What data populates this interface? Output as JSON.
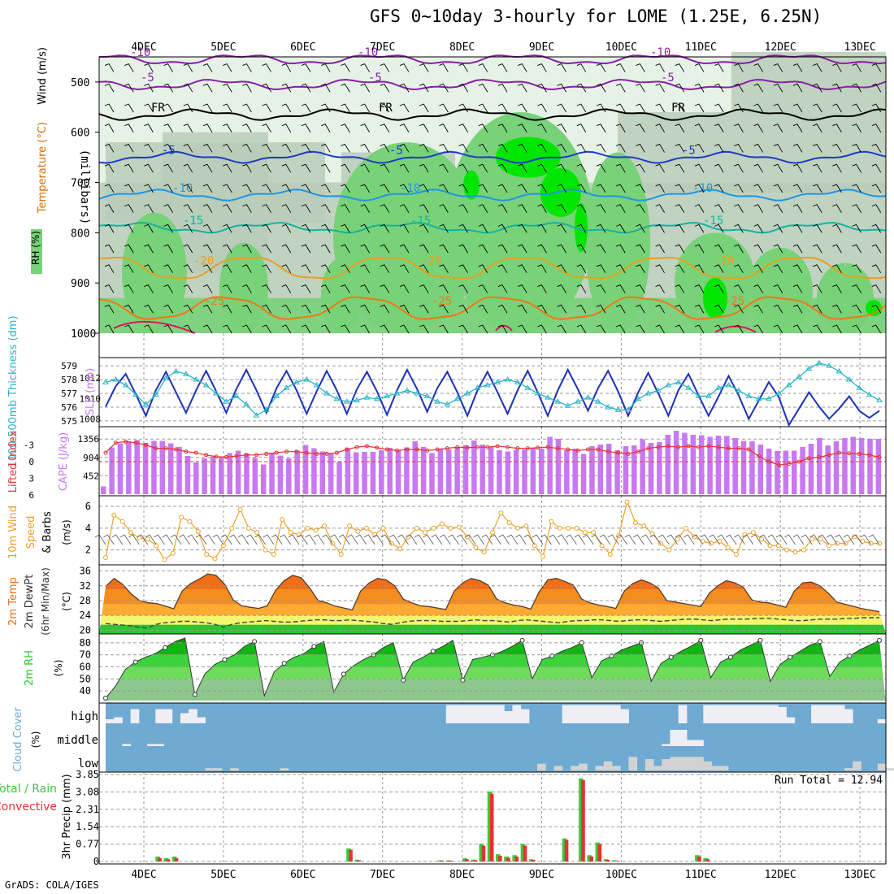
{
  "title": "GFS 0~10day 3-hourly for LOME (1.25E, 6.25N)",
  "footer": "GrADS: COLA/IGES",
  "colors": {
    "rh_light": "#e6f2e6",
    "rh_mid": "#b9cdb9",
    "rh_green": "#78d278",
    "rh_bright": "#00e600",
    "temp_purple": "#8c1eaa",
    "temp_blue": "#1e3cc8",
    "temp_lightblue": "#1e96e6",
    "temp_teal": "#14b4a0",
    "temp_orange": "#e6a01e",
    "temp_darkorange": "#f07814",
    "temp_red": "#dc1464",
    "slp": "#1e32b4",
    "thickness": "#28b4c8",
    "lifted": "#e63232",
    "cape": "#c878f0",
    "wind10": "#f0a028",
    "t_orange": "#f06e14",
    "t_lightorange": "#ffaa32",
    "t_yellow": "#f5f56e",
    "t_green": "#28c832",
    "cloud_blue": "#6eaad2",
    "cloud_white": "#f0eef5",
    "cloud_grey": "#d2d2d2",
    "precip_green": "#3cc83c",
    "precip_red": "#e63232"
  },
  "chart_data": [
    {
      "type": "time-height",
      "name": "upper-air",
      "x_ticks": [
        "4DEC",
        "5DEC",
        "6DEC",
        "7DEC",
        "8DEC",
        "9DEC",
        "10DEC",
        "11DEC",
        "12DEC",
        "13DEC"
      ],
      "ylabel": "(millibars)",
      "yaxis_label_parts": [
        "Wind (m/s)",
        "Temperature (°C)",
        "RH (%)"
      ],
      "y_ticks": [
        500,
        600,
        700,
        800,
        900,
        1000
      ],
      "ylim": [
        450,
        1000
      ],
      "isotherm_labels": [
        {
          "label": "-10",
          "pressure": 455
        },
        {
          "label": "-5",
          "pressure": 505
        },
        {
          "label": "FR",
          "pressure": 565
        },
        {
          "label": "-5",
          "pressure": 650
        },
        {
          "label": "-10",
          "pressure": 725
        },
        {
          "label": "-15",
          "pressure": 790
        },
        {
          "label": "-20",
          "pressure": 870
        },
        {
          "label": "-25",
          "pressure": 950
        }
      ]
    },
    {
      "type": "line",
      "name": "slp-thickness",
      "ylabel_left": "1000-500mb Thickness (dm)",
      "ylabel_right": "SLP (mb)",
      "left_ticks": [
        575,
        576,
        577,
        578,
        579
      ],
      "right_ticks": [
        1008,
        1010,
        1012
      ],
      "series": [
        {
          "name": "SLP",
          "axis": "right",
          "values": [
            1009.2,
            1011.2,
            1012.4,
            1010.4,
            1008.3,
            1010.8,
            1012.6,
            1010.6,
            1008.6,
            1010.8,
            1012.7,
            1010.7,
            1008.6,
            1010.9,
            1012.8,
            1010.8,
            1008.6,
            1011.0,
            1012.7,
            1010.8,
            1008.5,
            1010.7,
            1012.7,
            1010.8,
            1008.5,
            1010.9,
            1012.6,
            1010.7,
            1008.4,
            1010.8,
            1012.8,
            1010.9,
            1008.7,
            1011.0,
            1012.6,
            1010.6,
            1008.3,
            1010.8,
            1012.6,
            1010.6,
            1008.5,
            1010.8,
            1012.7,
            1010.6,
            1008.3,
            1010.8,
            1012.8,
            1010.9,
            1008.8,
            1011.0,
            1012.7,
            1010.7,
            1008.3,
            1010.6,
            1012.5,
            1010.5,
            1008.3,
            1010.8,
            1012.4,
            1010.3,
            1008.3,
            1010.2,
            1012.2,
            1010.3,
            1008.0,
            1009.8,
            1011.6,
            1010.1,
            1007.4,
            1009.0,
            1010.6,
            1009.2,
            1008.0,
            1009.0,
            1010.2,
            1008.8,
            1008.1,
            1008.8
          ]
        },
        {
          "name": "Thickness",
          "axis": "left",
          "values": [
            577.8,
            578.0,
            577.6,
            576.9,
            576.2,
            576.9,
            578.1,
            578.6,
            578.4,
            578.0,
            577.6,
            577.0,
            576.4,
            576.8,
            576.2,
            575.4,
            575.8,
            576.8,
            577.4,
            577.8,
            578.0,
            577.6,
            577.0,
            576.6,
            576.4,
            576.5,
            576.7,
            576.6,
            576.8,
            577.0,
            577.2,
            577.0,
            576.8,
            576.4,
            576.2,
            576.6,
            577.0,
            577.4,
            577.6,
            577.8,
            578.0,
            577.8,
            577.4,
            577.0,
            576.7,
            576.4,
            576.1,
            576.4,
            576.7,
            576.4,
            576.0,
            575.8,
            575.8,
            576.6,
            577.0,
            577.2,
            577.6,
            577.8,
            577.4,
            576.8,
            576.8,
            577.4,
            577.6,
            577.2,
            576.8,
            576.6,
            576.6,
            577.0,
            577.6,
            578.2,
            578.8,
            579.2,
            579.0,
            578.6,
            578.0,
            577.4,
            576.9,
            576.5
          ]
        }
      ]
    },
    {
      "type": "bar",
      "name": "cape-lifted",
      "ylabel_left": "Lifted Index",
      "ylabel_right": "CAPE (J/kg)",
      "left_ticks": [
        "-3",
        "0",
        "3",
        "6"
      ],
      "right_ticks": [
        452,
        904,
        1356
      ],
      "cape_values": [
        190,
        1150,
        1250,
        1300,
        1330,
        1260,
        1310,
        1310,
        1250,
        1160,
        940,
        780,
        880,
        920,
        930,
        1010,
        1070,
        1000,
        890,
        730,
        1020,
        950,
        880,
        1070,
        1210,
        1130,
        1050,
        1000,
        790,
        1130,
        1030,
        1040,
        1040,
        1080,
        1140,
        1080,
        1150,
        1300,
        1160,
        1010,
        1110,
        1100,
        1150,
        1210,
        1320,
        1220,
        1160,
        1080,
        1050,
        1090,
        1100,
        1140,
        1120,
        1410,
        1360,
        1080,
        1120,
        990,
        1180,
        1220,
        1240,
        1080,
        1180,
        1200,
        1350,
        1260,
        1280,
        1460,
        1560,
        1510,
        1460,
        1450,
        1410,
        1440,
        1430,
        1380,
        1310,
        1300,
        1220,
        1120,
        1060,
        1070,
        1070,
        1160,
        1240,
        1380,
        1200,
        1300,
        1380,
        1410,
        1380,
        1360,
        1360
      ],
      "lifted_values": [
        -1.6,
        -3.4,
        -3.6,
        -3.4,
        -3.0,
        -2.4,
        -2.4,
        -2.2,
        -1.8,
        -1.6,
        -1.2,
        -0.9,
        -0.8,
        -1.0,
        -1.2,
        -1.2,
        -1.4,
        -1.6,
        -1.8,
        -1.8,
        -1.6,
        -1.4,
        -1.4,
        -1.6,
        -2.2,
        -2.6,
        -2.8,
        -2.5,
        -2.2,
        -2.0,
        -2.2,
        -2.2,
        -2.0,
        -2.2,
        -2.4,
        -2.6,
        -2.5,
        -2.6,
        -2.6,
        -2.8,
        -2.6,
        -2.4,
        -2.4,
        -2.5,
        -2.6,
        -2.4,
        -2.2,
        -2.0,
        -2.2,
        -2.2,
        -1.8,
        -1.6,
        -1.4,
        -1.8,
        -2.4,
        -2.6,
        -2.8,
        -2.6,
        -2.8,
        -2.6,
        -2.8,
        -2.6,
        -2.4,
        -2.4,
        -2.2,
        -1.0,
        0.0,
        0.6,
        0.4,
        0.0,
        -0.6,
        -0.8,
        -1.2,
        -1.6,
        -1.5,
        -1.4,
        -1.2,
        -0.8
      ]
    },
    {
      "type": "line",
      "name": "wind10m",
      "ylabel": "10m Wind Speed (m/s) & Barbs",
      "y_ticks": [
        2,
        4,
        6
      ],
      "ylim": [
        1,
        6.6
      ],
      "values": [
        1.3,
        5.2,
        4.6,
        3.6,
        3.1,
        3.0,
        2.4,
        1.1,
        1.7,
        5.0,
        4.6,
        3.7,
        1.6,
        1.2,
        2.4,
        4.0,
        5.7,
        4.0,
        3.6,
        2.0,
        1.6,
        4.8,
        3.6,
        3.4,
        4.0,
        3.8,
        4.2,
        2.6,
        1.6,
        4.2,
        3.7,
        4.0,
        3.4,
        4.0,
        2.6,
        2.1,
        3.2,
        4.0,
        3.6,
        4.0,
        4.4,
        4.0,
        4.1,
        3.2,
        2.2,
        1.8,
        3.6,
        5.4,
        4.5,
        4.0,
        4.2,
        2.4,
        1.4,
        4.6,
        4.0,
        4.0,
        4.0,
        3.6,
        3.6,
        2.4,
        1.6,
        3.3,
        6.4,
        4.5,
        4.2,
        3.5,
        2.6,
        2.0,
        3.0,
        4.0,
        3.2,
        2.8,
        2.6,
        2.8,
        2.2,
        1.6,
        3.4,
        3.6,
        3.0,
        2.4,
        2.4,
        2.0,
        1.8,
        2.0,
        3.0,
        3.0,
        2.4,
        2.6,
        2.6,
        3.2,
        2.8,
        2.6,
        2.6
      ]
    },
    {
      "type": "area",
      "name": "temp2m",
      "ylabel": "2m Temp 2m DewPt (6hr Min/Max) (°C)",
      "y_ticks": [
        20,
        24,
        28,
        32,
        36
      ],
      "ylim": [
        19,
        37
      ],
      "temp_values": [
        31.8,
        34.0,
        32.4,
        29.8,
        28.0,
        27.4,
        27.2,
        26.5,
        25.8,
        30.6,
        32.6,
        33.8,
        35.2,
        34.8,
        32.4,
        28.2,
        26.6,
        26.2,
        25.9,
        26.6,
        30.8,
        33.4,
        34.8,
        34.2,
        31.4,
        28.0,
        27.4,
        26.5,
        26.0,
        25.5,
        30.6,
        32.8,
        34.0,
        33.6,
        32.0,
        28.4,
        27.4,
        26.6,
        26.4,
        26.0,
        25.6,
        30.6,
        32.8,
        34.0,
        33.4,
        32.2,
        28.4,
        27.4,
        26.8,
        26.4,
        25.7,
        30.4,
        33.6,
        34.0,
        33.2,
        32.2,
        28.4,
        27.4,
        26.8,
        26.4,
        25.9,
        30.6,
        32.6,
        33.6,
        32.8,
        31.4,
        28.0,
        27.6,
        27.2,
        26.8,
        26.4,
        30.0,
        32.0,
        33.4,
        32.8,
        31.6,
        28.2,
        27.6,
        27.4,
        26.8,
        26.2,
        30.6,
        32.8,
        33.0,
        32.0,
        30.0,
        27.6,
        27.0,
        26.4,
        25.8,
        25.4,
        25.0
      ],
      "dewpoint_values": [
        21.8,
        21.6,
        21.4,
        21.2,
        20.8,
        20.6,
        21.6,
        22.0,
        22.2,
        22.4,
        22.4,
        22.2,
        22.0,
        21.6,
        20.8,
        21.6,
        22.0,
        22.2,
        22.4,
        22.6,
        22.4,
        22.2,
        22.2,
        22.4,
        22.6,
        22.8,
        22.8,
        22.6,
        22.6,
        22.8,
        22.6,
        22.4,
        22.2,
        21.8,
        21.6,
        22.0,
        22.4,
        22.6,
        22.6,
        22.6,
        22.4,
        22.4,
        22.4,
        22.6,
        22.8,
        22.6,
        22.6,
        22.4,
        22.2,
        22.6,
        22.8,
        22.6,
        22.4,
        22.2,
        22.0,
        22.4,
        22.6,
        22.6,
        22.8,
        22.8,
        22.6,
        22.4,
        22.6,
        22.8,
        22.8,
        22.6,
        22.4,
        22.6,
        22.8,
        23.0,
        23.0,
        22.8,
        22.6,
        22.8,
        23.0,
        23.0,
        23.0,
        23.1,
        23.2,
        23.2,
        23.0,
        22.8,
        22.6,
        22.6,
        22.8,
        23.0,
        23.0,
        23.0,
        23.2,
        23.2,
        23.4,
        23.4,
        23.4
      ]
    },
    {
      "type": "area",
      "name": "rh2m",
      "ylabel": "2m RH (%)",
      "y_ticks": [
        40,
        50,
        60,
        70,
        80
      ],
      "ylim": [
        32,
        86
      ],
      "values": [
        34,
        44,
        58,
        64,
        68,
        71,
        76,
        81,
        84,
        37,
        54,
        62,
        66,
        70,
        77,
        81,
        36,
        56,
        63,
        68,
        71,
        77,
        81,
        39,
        54,
        61,
        66,
        70,
        76,
        80,
        49,
        64,
        68,
        73,
        77,
        82,
        49,
        66,
        68,
        70,
        73,
        77,
        82,
        50,
        66,
        69,
        73,
        76,
        80,
        51,
        65,
        69,
        74,
        77,
        80,
        48,
        63,
        68,
        73,
        77,
        82,
        51,
        64,
        68,
        74,
        78,
        82,
        48,
        62,
        68,
        73,
        78,
        81,
        52,
        64,
        69,
        74,
        78,
        82
      ]
    },
    {
      "type": "heatmap",
      "name": "cloud-cover",
      "ylabel": "Cloud Cover (%)",
      "levels": [
        "high",
        "middle",
        "low"
      ],
      "high": [
        20,
        30,
        0,
        70,
        0,
        0,
        70,
        70,
        0,
        50,
        70,
        30,
        0,
        0,
        0,
        0,
        0,
        0,
        0,
        0,
        0,
        0,
        0,
        0,
        0,
        0,
        0,
        0,
        0,
        0,
        0,
        0,
        0,
        0,
        0,
        0,
        0,
        0,
        0,
        0,
        0,
        90,
        90,
        90,
        90,
        90,
        90,
        90,
        60,
        90,
        70,
        0,
        0,
        0,
        0,
        90,
        90,
        90,
        90,
        90,
        90,
        90,
        70,
        0,
        0,
        0,
        0,
        0,
        0,
        90,
        0,
        0,
        90,
        90,
        90,
        90,
        90,
        90,
        90,
        90,
        90,
        80,
        30,
        0,
        0,
        90,
        90,
        90,
        90,
        70,
        0,
        0,
        0,
        20
      ],
      "middle": [
        0,
        0,
        10,
        0,
        0,
        10,
        10,
        0,
        0,
        0,
        0,
        0,
        0,
        0,
        0,
        0,
        0,
        0,
        0,
        0,
        0,
        0,
        0,
        0,
        0,
        0,
        0,
        0,
        0,
        0,
        0,
        0,
        0,
        0,
        0,
        0,
        0,
        0,
        0,
        0,
        0,
        0,
        0,
        0,
        0,
        0,
        0,
        0,
        0,
        0,
        0,
        0,
        0,
        0,
        0,
        0,
        0,
        0,
        0,
        0,
        0,
        0,
        0,
        0,
        0,
        0,
        0,
        10,
        80,
        80,
        30,
        30,
        0,
        0,
        0,
        0,
        0,
        0,
        0,
        0,
        0,
        0,
        0,
        0,
        0,
        0,
        0,
        0,
        0,
        0,
        0,
        0,
        0,
        0
      ],
      "low": [
        0,
        0,
        0,
        0,
        0,
        0,
        0,
        0,
        0,
        0,
        0,
        0,
        10,
        10,
        0,
        10,
        0,
        0,
        0,
        0,
        0,
        10,
        0,
        0,
        0,
        0,
        0,
        0,
        0,
        0,
        0,
        0,
        0,
        0,
        0,
        0,
        0,
        0,
        0,
        0,
        0,
        0,
        0,
        0,
        0,
        0,
        0,
        0,
        0,
        0,
        0,
        0,
        30,
        0,
        20,
        0,
        20,
        30,
        0,
        20,
        40,
        20,
        0,
        60,
        0,
        50,
        20,
        50,
        60,
        60,
        60,
        60,
        40,
        20,
        20,
        0,
        0,
        0,
        0,
        0,
        0,
        0,
        0,
        0,
        0,
        0,
        0,
        0,
        0,
        10,
        40,
        0,
        0,
        30,
        10
      ]
    },
    {
      "type": "bar",
      "name": "precip",
      "ylabel": "3hr Precip (mm)",
      "legend": [
        "Total / Rain",
        "Convective"
      ],
      "annotation": "Run Total = 12.94",
      "y_ticks": [
        "0",
        "0.77",
        "1.54",
        "2.31",
        "3.08",
        "3.85"
      ],
      "ylim": [
        0,
        3.85
      ],
      "total_values": [
        0,
        0,
        0,
        0,
        0,
        0,
        0.22,
        0.15,
        0.22,
        0,
        0,
        0,
        0,
        0,
        0,
        0,
        0,
        0,
        0,
        0,
        0,
        0,
        0,
        0,
        0,
        0,
        0,
        0,
        0,
        0.58,
        0.08,
        0,
        0,
        0,
        0,
        0,
        0,
        0,
        0,
        0,
        0.05,
        0.05,
        0,
        0.15,
        0.08,
        0.78,
        3.1,
        0.32,
        0.22,
        0.28,
        0.78,
        0.1,
        0,
        0,
        0,
        1.02,
        0,
        3.68,
        0.28,
        0.84,
        0.1,
        0.05,
        0,
        0,
        0,
        0,
        0,
        0,
        0,
        0,
        0,
        0.28,
        0.15,
        0,
        0,
        0,
        0,
        0,
        0,
        0,
        0,
        0,
        0,
        0,
        0,
        0,
        0,
        0,
        0,
        0,
        0,
        0,
        0,
        0
      ],
      "convective_values": [
        0,
        0,
        0,
        0,
        0,
        0,
        0.15,
        0.1,
        0.15,
        0,
        0,
        0,
        0,
        0,
        0,
        0,
        0,
        0,
        0,
        0,
        0,
        0,
        0,
        0,
        0,
        0,
        0,
        0,
        0,
        0.52,
        0.05,
        0,
        0,
        0,
        0,
        0,
        0,
        0,
        0,
        0,
        0.04,
        0.04,
        0,
        0.1,
        0.06,
        0.7,
        3.0,
        0.25,
        0.16,
        0.22,
        0.7,
        0.07,
        0,
        0,
        0,
        0.96,
        0,
        3.6,
        0.22,
        0.76,
        0.07,
        0.03,
        0,
        0,
        0,
        0,
        0,
        0,
        0,
        0,
        0,
        0.22,
        0.1,
        0,
        0,
        0,
        0,
        0,
        0,
        0,
        0,
        0,
        0,
        0,
        0,
        0,
        0,
        0,
        0,
        0,
        0,
        0,
        0,
        0
      ]
    }
  ]
}
